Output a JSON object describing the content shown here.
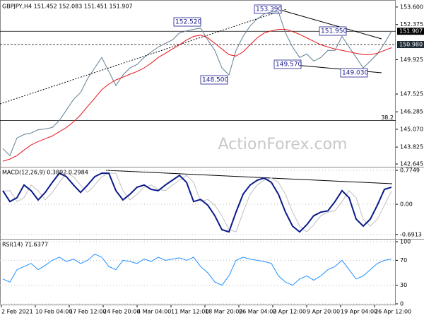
{
  "chart_data": [
    {
      "type": "line",
      "title": "GBPJPY,H4 151.452 152.083 151.451 151.907",
      "watermark": "ActionForex.com",
      "xlim": [
        -0.4,
        55.6
      ],
      "ylim": [
        142.45,
        153.99
      ],
      "yticks": [
        {
          "value": 153.6,
          "label": "153.600"
        },
        {
          "value": 152.375,
          "label": "152.375"
        },
        {
          "value": 149.925,
          "label": "149.925"
        },
        {
          "value": 147.525,
          "label": "147.525"
        },
        {
          "value": 146.285,
          "label": "146.285"
        },
        {
          "value": 145.07,
          "label": "145.070"
        },
        {
          "value": 143.825,
          "label": "143.825"
        },
        {
          "value": 142.645,
          "label": "142.645"
        }
      ],
      "hlines": [
        {
          "value": 151.907,
          "label": "151.907"
        },
        {
          "value": 150.98,
          "label": "150.980"
        },
        {
          "value": 145.68,
          "label": "38.2"
        }
      ],
      "annotations": [
        "153.390",
        "152.520",
        "151.950",
        "149.570",
        "149.030",
        "148.500"
      ],
      "series": [
        {
          "color": "#5f7f92",
          "values": [
            143.72,
            143.23,
            144.46,
            144.7,
            144.8,
            145.04,
            145.09,
            145.19,
            145.68,
            146.41,
            147.15,
            147.63,
            148.61,
            149.35,
            150.08,
            149.1,
            148.12,
            148.86,
            149.35,
            149.59,
            150.08,
            150.47,
            150.81,
            151.06,
            151.3,
            151.79,
            151.94,
            152.04,
            152.13,
            151.3,
            150.57,
            149.35,
            148.86,
            150.57,
            151.55,
            152.28,
            152.77,
            153.11,
            153.26,
            153.26,
            151.79,
            150.81,
            150.08,
            150.32,
            149.83,
            150.08,
            150.57,
            150.57,
            151.55,
            150.81,
            150.08,
            149.35,
            149.83,
            150.32,
            151.06,
            151.91
          ]
        },
        {
          "color": "#e8161b",
          "values": [
            142.84,
            142.99,
            143.23,
            143.62,
            143.97,
            144.21,
            144.41,
            144.6,
            144.9,
            145.19,
            145.58,
            146.07,
            146.66,
            147.24,
            147.83,
            148.22,
            148.51,
            148.71,
            148.91,
            149.1,
            149.35,
            149.69,
            150.08,
            150.37,
            150.67,
            150.96,
            151.3,
            151.55,
            151.64,
            151.45,
            151.06,
            150.67,
            150.27,
            150.18,
            150.47,
            150.96,
            151.45,
            151.79,
            151.94,
            152.04,
            152.04,
            151.89,
            151.69,
            151.45,
            151.2,
            150.96,
            150.81,
            150.67,
            150.57,
            150.47,
            150.37,
            150.27,
            150.27,
            150.37,
            150.57,
            150.76
          ]
        }
      ]
    },
    {
      "type": "line",
      "title": "MACD(12,26,9) 0.3892 0.2984",
      "xlim": [
        -0.4,
        55.6
      ],
      "ylim": [
        -0.79,
        0.84
      ],
      "yticks": [
        0.7749,
        {
          "value": 0,
          "label": "0.00"
        },
        -0.6913
      ],
      "series": [
        {
          "color": "#c0c0c0",
          "values": [
            0.3,
            0.31,
            0.06,
            0.15,
            0.44,
            0.31,
            0.1,
            0.27,
            0.5,
            0.71,
            0.63,
            0.44,
            0.27,
            0.44,
            0.63,
            0.71,
            0.71,
            0.31,
            0.1,
            0.23,
            0.39,
            0.44,
            0.34,
            0.31,
            0.44,
            0.55,
            0.66,
            0.5,
            0.06,
            0.11,
            -0.02,
            -0.26,
            -0.58,
            -0.63,
            -0.18,
            0.23,
            0.44,
            0.55,
            0.6,
            0.5,
            0.23,
            -0.18,
            -0.5,
            -0.63,
            -0.47,
            -0.26,
            -0.18,
            -0.15,
            0.06,
            0.31,
            0.15,
            -0.34,
            -0.5,
            -0.34,
            -0.02,
            0.3
          ]
        },
        {
          "color": "#0a1a8a",
          "values": [
            0.31,
            0.06,
            0.15,
            0.44,
            0.31,
            0.1,
            0.27,
            0.5,
            0.71,
            0.63,
            0.44,
            0.27,
            0.44,
            0.63,
            0.71,
            0.71,
            0.31,
            0.1,
            0.23,
            0.39,
            0.44,
            0.34,
            0.31,
            0.44,
            0.55,
            0.66,
            0.5,
            0.06,
            0.11,
            -0.02,
            -0.26,
            -0.58,
            -0.63,
            -0.18,
            0.23,
            0.44,
            0.55,
            0.6,
            0.5,
            0.23,
            -0.18,
            -0.5,
            -0.63,
            -0.47,
            -0.26,
            -0.18,
            -0.15,
            0.06,
            0.31,
            0.15,
            -0.34,
            -0.5,
            -0.34,
            -0.02,
            0.34,
            0.39
          ]
        }
      ]
    },
    {
      "type": "line",
      "title": "RSI(14) 71.6377",
      "xlim": [
        -0.4,
        55.6
      ],
      "ylim": [
        -2.3,
        103.4
      ],
      "yticks": [
        100,
        70,
        30,
        0
      ],
      "xticks": [
        {
          "value": -0.2,
          "label": "2 Feb 2021"
        },
        {
          "value": 4.6,
          "label": "10 Feb 04:00"
        },
        {
          "value": 9.4,
          "label": "17 Feb 12:00"
        },
        {
          "value": 14.2,
          "label": "24 Feb 20:00"
        },
        {
          "value": 19,
          "label": "4 Mar 04:00"
        },
        {
          "value": 23.8,
          "label": "11 Mar 12:00"
        },
        {
          "value": 28.6,
          "label": "18 Mar 20:00"
        },
        {
          "value": 33.4,
          "label": "26 Mar 04:00"
        },
        {
          "value": 38.2,
          "label": "2 Apr 12:00"
        },
        {
          "value": 43,
          "label": "9 Apr 20:00"
        },
        {
          "value": 47.8,
          "label": "19 Apr 04:00"
        },
        {
          "value": 52.6,
          "label": "26 Apr 12:00"
        }
      ],
      "series": [
        {
          "color": "#1e90ff",
          "values": [
            40,
            35,
            55,
            60,
            65,
            55,
            62,
            70,
            75,
            68,
            72,
            65,
            70,
            80,
            75,
            60,
            55,
            70,
            68,
            65,
            72,
            68,
            75,
            70,
            72,
            74,
            70,
            75,
            60,
            50,
            35,
            30,
            45,
            70,
            75,
            72,
            70,
            68,
            65,
            45,
            35,
            30,
            40,
            45,
            38,
            45,
            55,
            60,
            70,
            55,
            40,
            45,
            55,
            65,
            70,
            72
          ]
        }
      ]
    }
  ]
}
